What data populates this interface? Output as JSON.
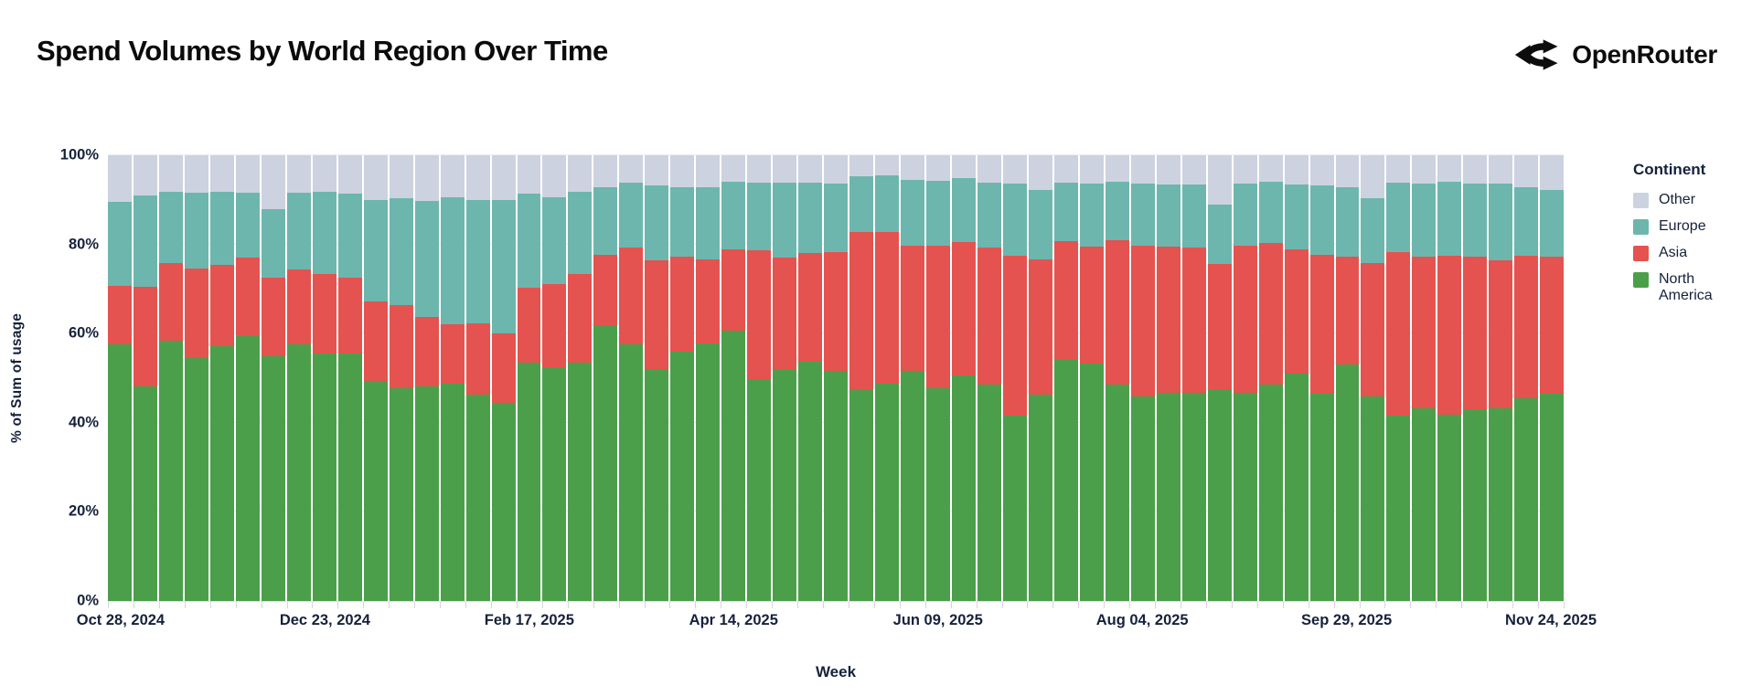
{
  "page": {
    "title": "Spend Volumes by World Region Over Time",
    "brand": "OpenRouter"
  },
  "legend": {
    "title": "Continent"
  },
  "axes": {
    "x_label": "Week",
    "y_label": "% of Sum of usage"
  },
  "chart_data": {
    "type": "bar",
    "stacked": true,
    "stack_unit": "percent_of_total",
    "title": "Spend Volumes by World Region Over Time",
    "xlabel": "Week",
    "ylabel": "% of Sum of usage",
    "ylim": [
      0,
      100
    ],
    "grid": true,
    "legend_title": "Continent",
    "legend_position": "right",
    "y_ticks": [
      "0%",
      "20%",
      "40%",
      "60%",
      "80%",
      "100%"
    ],
    "categories": [
      "Oct 28, 2024",
      "Nov 04, 2024",
      "Nov 11, 2024",
      "Nov 18, 2024",
      "Nov 25, 2024",
      "Dec 02, 2024",
      "Dec 09, 2024",
      "Dec 16, 2024",
      "Dec 23, 2024",
      "Dec 30, 2024",
      "Jan 06, 2025",
      "Jan 13, 2025",
      "Jan 20, 2025",
      "Jan 27, 2025",
      "Feb 03, 2025",
      "Feb 10, 2025",
      "Feb 17, 2025",
      "Feb 24, 2025",
      "Mar 03, 2025",
      "Mar 10, 2025",
      "Mar 17, 2025",
      "Mar 24, 2025",
      "Mar 31, 2025",
      "Apr 07, 2025",
      "Apr 14, 2025",
      "Apr 21, 2025",
      "Apr 28, 2025",
      "May 05, 2025",
      "May 12, 2025",
      "May 19, 2025",
      "May 26, 2025",
      "Jun 02, 2025",
      "Jun 09, 2025",
      "Jun 16, 2025",
      "Jun 23, 2025",
      "Jun 30, 2025",
      "Jul 07, 2025",
      "Jul 14, 2025",
      "Jul 21, 2025",
      "Jul 28, 2025",
      "Aug 04, 2025",
      "Aug 11, 2025",
      "Aug 18, 2025",
      "Aug 25, 2025",
      "Sep 01, 2025",
      "Sep 08, 2025",
      "Sep 15, 2025",
      "Sep 22, 2025",
      "Sep 29, 2025",
      "Oct 06, 2025",
      "Oct 13, 2025",
      "Oct 20, 2025",
      "Oct 27, 2025",
      "Nov 03, 2025",
      "Nov 10, 2025",
      "Nov 17, 2025",
      "Nov 24, 2025"
    ],
    "x_tick_indices": [
      0,
      8,
      16,
      24,
      32,
      40,
      48,
      56
    ],
    "x_tick_labels": [
      "Oct 28, 2024",
      "Dec 23, 2024",
      "Feb 17, 2025",
      "Apr 14, 2025",
      "Jun 09, 2025",
      "Aug 04, 2025",
      "Sep 29, 2025",
      "Nov 24, 2025"
    ],
    "series": [
      {
        "name": "Other",
        "color": "#CDD2E1",
        "values": [
          10.4,
          9.1,
          8.2,
          8.4,
          8.2,
          8.3,
          12.0,
          8.3,
          8.1,
          8.5,
          10.0,
          9.7,
          10.2,
          9.5,
          10.0,
          10.0,
          8.6,
          9.5,
          8.2,
          7.1,
          6.1,
          6.8,
          7.1,
          7.1,
          5.9,
          6.1,
          6.1,
          6.1,
          6.4,
          4.8,
          4.5,
          5.6,
          5.7,
          5.1,
          6.1,
          6.3,
          7.8,
          6.1,
          6.4,
          5.9,
          6.4,
          6.6,
          6.6,
          11.1,
          6.3,
          5.9,
          6.5,
          6.7,
          7.2,
          9.7,
          6.1,
          6.4,
          5.9,
          6.4,
          6.3,
          7.1,
          7.7
        ]
      },
      {
        "name": "Europe",
        "color": "#6DB6AE",
        "values": [
          18.9,
          20.5,
          15.9,
          17.0,
          16.3,
          14.6,
          15.5,
          17.4,
          18.5,
          19.0,
          22.7,
          24.0,
          26.0,
          28.5,
          27.7,
          30.0,
          21.2,
          19.4,
          18.5,
          15.2,
          14.6,
          16.7,
          15.6,
          16.3,
          15.2,
          15.3,
          16.9,
          15.9,
          15.3,
          12.4,
          12.7,
          14.6,
          14.5,
          14.4,
          14.6,
          16.2,
          15.6,
          13.2,
          14.0,
          13.2,
          13.8,
          13.8,
          14.1,
          13.3,
          13.9,
          13.8,
          14.6,
          15.7,
          15.5,
          14.4,
          15.7,
          16.3,
          16.6,
          16.4,
          17.2,
          15.4,
          15.0
        ]
      },
      {
        "name": "Asia",
        "color": "#E4534F",
        "values": [
          13.2,
          22.2,
          17.4,
          20.1,
          18.3,
          17.6,
          17.5,
          16.8,
          17.8,
          16.9,
          18.0,
          18.6,
          15.6,
          13.2,
          16.0,
          15.5,
          16.8,
          18.7,
          19.9,
          15.9,
          21.8,
          24.5,
          21.3,
          18.9,
          18.3,
          28.9,
          25.2,
          24.4,
          26.6,
          35.4,
          34.0,
          28.1,
          32.0,
          29.9,
          30.8,
          35.8,
          30.3,
          26.5,
          26.4,
          32.4,
          33.8,
          32.9,
          32.5,
          28.1,
          33.0,
          31.8,
          27.8,
          31.0,
          24.3,
          29.9,
          36.5,
          34.0,
          35.7,
          34.1,
          33.2,
          32.1,
          30.8
        ]
      },
      {
        "name": "North America",
        "color": "#4B9F4A",
        "values": [
          57.5,
          48.2,
          58.5,
          54.5,
          57.2,
          59.5,
          55.0,
          57.5,
          55.6,
          55.6,
          49.3,
          47.7,
          48.2,
          48.8,
          46.3,
          44.5,
          53.4,
          52.4,
          53.4,
          61.8,
          57.5,
          52.0,
          56.0,
          57.7,
          60.6,
          49.7,
          51.8,
          53.6,
          51.7,
          47.4,
          48.8,
          51.7,
          47.8,
          50.6,
          48.5,
          41.7,
          46.3,
          54.2,
          53.2,
          48.5,
          46.0,
          46.7,
          46.8,
          47.5,
          46.8,
          48.5,
          51.1,
          46.6,
          53.0,
          46.0,
          41.7,
          43.3,
          41.8,
          43.1,
          43.3,
          45.4,
          46.5
        ]
      }
    ]
  }
}
